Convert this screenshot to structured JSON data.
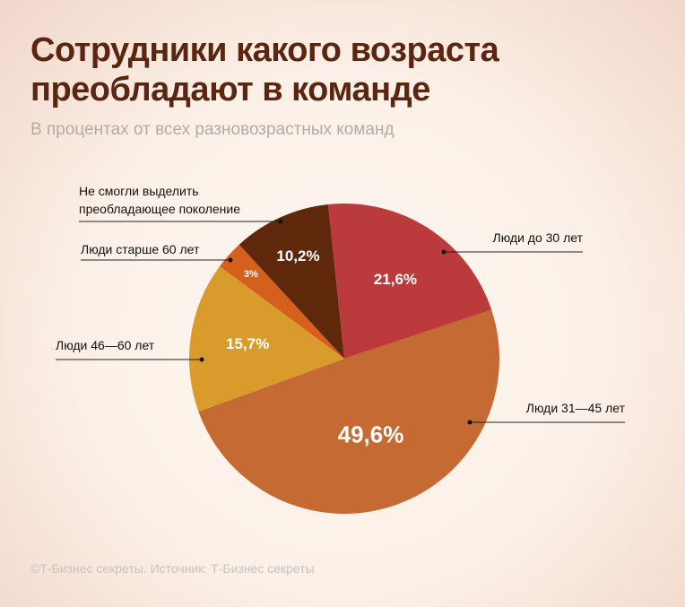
{
  "chart_data": {
    "type": "pie",
    "title": "Сотрудники какого возраста преобладают в команде",
    "subtitle": "В процентах от всех разновозрастных команд",
    "footer": "©Т-Бизнес секреты. Источник: Т-Бизнес секреты",
    "categories": [
      "Люди до 30 лет",
      "Люди 31—45 лет",
      "Люди 46—60 лет",
      "Люди старше 60 лет",
      "Не смогли выделить преобладающее поколение"
    ],
    "values": [
      21.6,
      49.6,
      15.7,
      3,
      10.2
    ],
    "value_labels": [
      "21,6%",
      "49,6%",
      "15,7%",
      "3%",
      "10,2%"
    ],
    "colors": [
      "#bb3a3b",
      "#c66a33",
      "#d99c2c",
      "#d55f1d",
      "#5f280b"
    ]
  }
}
